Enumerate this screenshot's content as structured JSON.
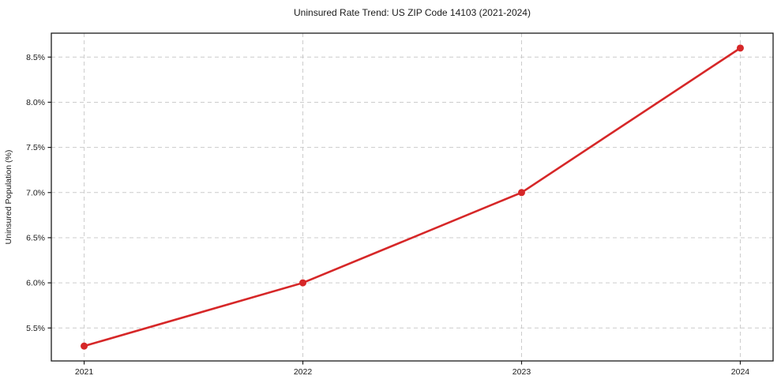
{
  "title": "Uninsured Rate Trend: US ZIP Code 14103 (2021-2024)",
  "colors": {
    "line": "#d62728",
    "marker": "#d62728",
    "grid": "#cccccc",
    "spine": "#1a1a1a",
    "background": "#ffffff",
    "text": "#1a1a1a"
  },
  "chart_data": {
    "type": "line",
    "title": "Uninsured Rate Trend: US ZIP Code 14103 (2021-2024)",
    "xlabel": "",
    "ylabel": "Uninsured Population (%)",
    "x": [
      2021,
      2022,
      2023,
      2024
    ],
    "xtick_labels": [
      "2021",
      "2022",
      "2023",
      "2024"
    ],
    "series": [
      {
        "name": "Uninsured Population (%)",
        "values": [
          5.3,
          6.0,
          7.0,
          8.6
        ],
        "point_labels": [
          "5.3%",
          "6.0%",
          "7.0%",
          "8.6%"
        ]
      }
    ],
    "ytick_values": [
      5.5,
      6.0,
      6.5,
      7.0,
      7.5,
      8.0,
      8.5
    ],
    "ytick_labels": [
      "5.5%",
      "6.0%",
      "6.5%",
      "7.0%",
      "7.5%",
      "8.0%",
      "8.5%"
    ],
    "xlim": [
      2020.85,
      2024.15
    ],
    "ylim": [
      5.135,
      8.765
    ],
    "grid": true,
    "grid_style": "dashed",
    "legend": "none",
    "marker": "circle"
  }
}
